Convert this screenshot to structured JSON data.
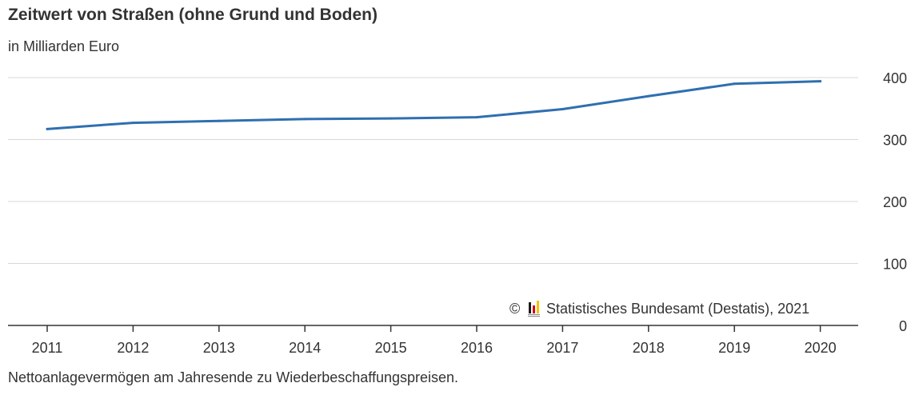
{
  "chart_data": {
    "type": "line",
    "title": "Zeitwert von Straßen (ohne Grund und Boden)",
    "subtitle": "in Milliarden Euro",
    "x": [
      "2011",
      "2012",
      "2013",
      "2014",
      "2015",
      "2016",
      "2017",
      "2018",
      "2019",
      "2020"
    ],
    "series": [
      {
        "values": [
          317,
          327,
          330,
          333,
          334,
          336,
          349,
          370,
          390,
          394
        ],
        "color": "#2f6fb0"
      }
    ],
    "y_ticks": [
      "0",
      "100",
      "200",
      "300",
      "400"
    ],
    "ylim": [
      0,
      400
    ],
    "y_axis_side": "right",
    "grid": true,
    "source": "Statistisches Bundesamt (Destatis), 2021",
    "copyright_symbol": "©",
    "footnote": "Nettoanlagevermögen am Jahresende zu Wiederbeschaffungspreisen."
  },
  "colors": {
    "line": "#2f6fb0",
    "grid": "#d9d9d9",
    "axis": "#333333",
    "logo": [
      "#1a1a1a",
      "#d4001a",
      "#f2c200"
    ]
  }
}
